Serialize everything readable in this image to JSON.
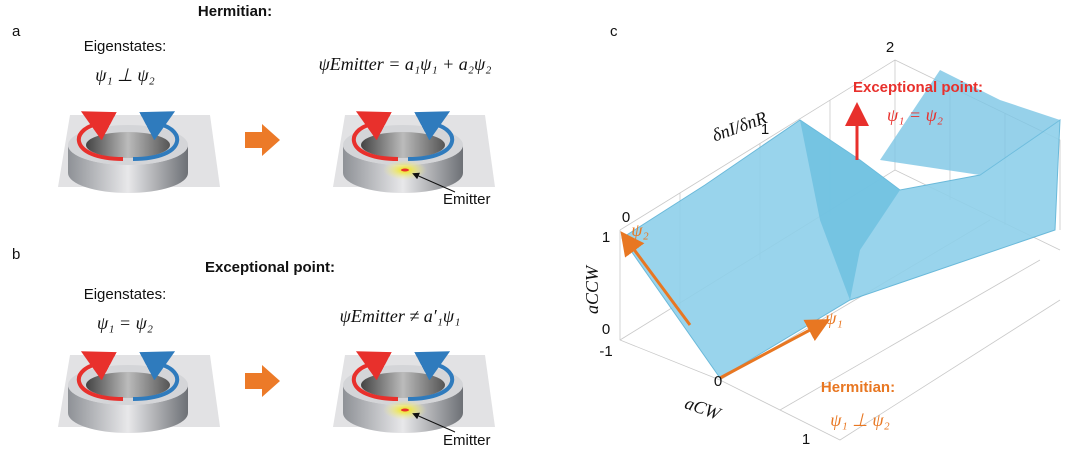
{
  "panel_a": {
    "label": "a",
    "title": "Hermitian:",
    "eigenstates": "Eigenstates:",
    "relation": "ψ₁ ⊥ ψ₂",
    "equation": "ψEmitter = a₁ψ₁ + a₂ψ₂",
    "emitter": "Emitter"
  },
  "panel_b": {
    "label": "b",
    "title": "Exceptional point:",
    "eigenstates": "Eigenstates:",
    "relation": "ψ₁ = ψ₂",
    "equation": "ψEmitter ≠ a′₁ψ₁",
    "emitter": "Emitter"
  },
  "panel_c": {
    "label": "c",
    "axis_top": {
      "label": "δnI/δnR",
      "ticks": [
        "0",
        "1",
        "2"
      ]
    },
    "axis_vertical": {
      "label": "aCCW",
      "ticks": [
        "0",
        "1"
      ]
    },
    "axis_bottom": {
      "label": "aCW",
      "ticks": [
        "-1",
        "0",
        "1"
      ]
    },
    "ep_title": "Exceptional point:",
    "ep_relation": "ψ₁ = ψ₂",
    "psi1": "ψ₁",
    "psi2": "ψ₂",
    "hermitian_title": "Hermitian:",
    "hermitian_relation": "ψ₁ ⊥ ψ₂"
  }
}
